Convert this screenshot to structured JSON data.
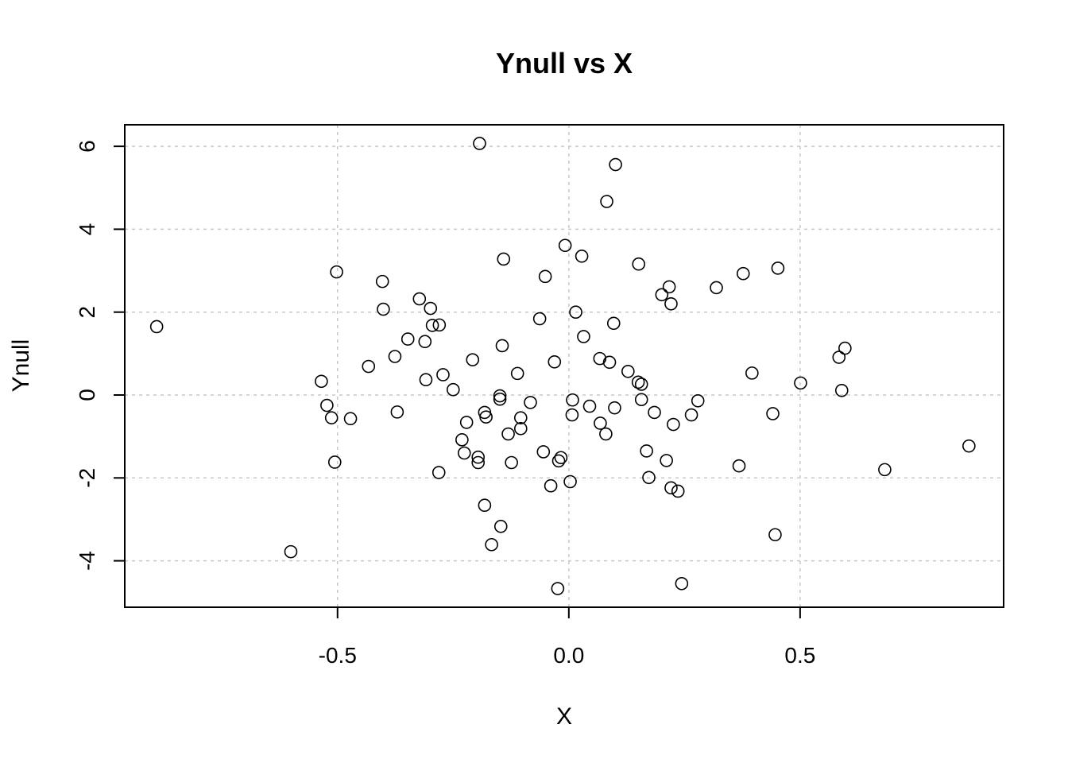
{
  "chart_data": {
    "type": "scatter",
    "title": "Ynull vs X",
    "xlabel": "X",
    "ylabel": "Ynull",
    "xlim": [
      -0.96,
      0.94
    ],
    "ylim": [
      -5.12,
      6.52
    ],
    "xticks": [
      -0.5,
      0.0,
      0.5
    ],
    "xtick_labels": [
      "-0.5",
      "0.0",
      "0.5"
    ],
    "yticks": [
      -4,
      -2,
      0,
      2,
      4,
      6
    ],
    "ytick_labels": [
      "-4",
      "-2",
      "0",
      "2",
      "4",
      "6"
    ],
    "grid": true,
    "legend": "none",
    "marker": "open-circle",
    "colors": {
      "points": "#000000",
      "grid": "#c8c8c8",
      "frame": "#000000"
    },
    "points": [
      {
        "x": -0.891,
        "y": 1.65
      },
      {
        "x": -0.601,
        "y": -3.78
      },
      {
        "x": -0.535,
        "y": 0.33
      },
      {
        "x": -0.523,
        "y": -0.25
      },
      {
        "x": -0.513,
        "y": -0.55
      },
      {
        "x": -0.506,
        "y": -1.62
      },
      {
        "x": -0.502,
        "y": 2.97
      },
      {
        "x": -0.472,
        "y": -0.57
      },
      {
        "x": -0.433,
        "y": 0.69
      },
      {
        "x": -0.403,
        "y": 2.74
      },
      {
        "x": -0.401,
        "y": 2.07
      },
      {
        "x": -0.376,
        "y": 0.93
      },
      {
        "x": -0.371,
        "y": -0.41
      },
      {
        "x": -0.348,
        "y": 1.35
      },
      {
        "x": -0.323,
        "y": 2.32
      },
      {
        "x": -0.311,
        "y": 1.29
      },
      {
        "x": -0.309,
        "y": 0.37
      },
      {
        "x": -0.299,
        "y": 2.09
      },
      {
        "x": -0.295,
        "y": 1.68
      },
      {
        "x": -0.28,
        "y": 1.69
      },
      {
        "x": -0.281,
        "y": -1.87
      },
      {
        "x": -0.272,
        "y": 0.49
      },
      {
        "x": -0.25,
        "y": 0.13
      },
      {
        "x": -0.231,
        "y": -1.08
      },
      {
        "x": -0.226,
        "y": -1.4
      },
      {
        "x": -0.221,
        "y": -0.66
      },
      {
        "x": -0.208,
        "y": 0.85
      },
      {
        "x": -0.196,
        "y": -1.5
      },
      {
        "x": -0.193,
        "y": 6.07
      },
      {
        "x": -0.196,
        "y": -1.63
      },
      {
        "x": -0.182,
        "y": -0.42
      },
      {
        "x": -0.182,
        "y": -2.66
      },
      {
        "x": -0.179,
        "y": -0.53
      },
      {
        "x": -0.167,
        "y": -3.61
      },
      {
        "x": -0.149,
        "y": -0.02
      },
      {
        "x": -0.149,
        "y": -0.1
      },
      {
        "x": -0.147,
        "y": -3.17
      },
      {
        "x": -0.144,
        "y": 1.19
      },
      {
        "x": -0.141,
        "y": 3.28
      },
      {
        "x": -0.131,
        "y": -0.94
      },
      {
        "x": -0.124,
        "y": -1.63
      },
      {
        "x": -0.111,
        "y": 0.52
      },
      {
        "x": -0.104,
        "y": -0.55
      },
      {
        "x": -0.104,
        "y": -0.81
      },
      {
        "x": -0.083,
        "y": -0.18
      },
      {
        "x": -0.063,
        "y": 1.84
      },
      {
        "x": -0.055,
        "y": -1.37
      },
      {
        "x": -0.051,
        "y": 2.86
      },
      {
        "x": -0.039,
        "y": -2.19
      },
      {
        "x": -0.031,
        "y": 0.8
      },
      {
        "x": -0.024,
        "y": -4.67
      },
      {
        "x": -0.022,
        "y": -1.59
      },
      {
        "x": -0.017,
        "y": -1.51
      },
      {
        "x": -0.008,
        "y": 3.61
      },
      {
        "x": 0.003,
        "y": -2.09
      },
      {
        "x": 0.007,
        "y": -0.48
      },
      {
        "x": 0.008,
        "y": -0.12
      },
      {
        "x": 0.015,
        "y": 2.0
      },
      {
        "x": 0.028,
        "y": 3.35
      },
      {
        "x": 0.032,
        "y": 1.41
      },
      {
        "x": 0.045,
        "y": -0.27
      },
      {
        "x": 0.067,
        "y": 0.88
      },
      {
        "x": 0.068,
        "y": -0.68
      },
      {
        "x": 0.08,
        "y": -0.94
      },
      {
        "x": 0.082,
        "y": 4.67
      },
      {
        "x": 0.088,
        "y": 0.79
      },
      {
        "x": 0.097,
        "y": 1.73
      },
      {
        "x": 0.099,
        "y": -0.31
      },
      {
        "x": 0.101,
        "y": 5.56
      },
      {
        "x": 0.128,
        "y": 0.57
      },
      {
        "x": 0.15,
        "y": 0.31
      },
      {
        "x": 0.151,
        "y": 3.16
      },
      {
        "x": 0.157,
        "y": 0.26
      },
      {
        "x": 0.157,
        "y": -0.11
      },
      {
        "x": 0.168,
        "y": -1.35
      },
      {
        "x": 0.173,
        "y": -1.99
      },
      {
        "x": 0.185,
        "y": -0.42
      },
      {
        "x": 0.201,
        "y": 2.42
      },
      {
        "x": 0.211,
        "y": -1.58
      },
      {
        "x": 0.217,
        "y": 2.61
      },
      {
        "x": 0.221,
        "y": -2.24
      },
      {
        "x": 0.221,
        "y": 2.2
      },
      {
        "x": 0.226,
        "y": -0.71
      },
      {
        "x": 0.236,
        "y": -2.32
      },
      {
        "x": 0.244,
        "y": -4.55
      },
      {
        "x": 0.265,
        "y": -0.48
      },
      {
        "x": 0.279,
        "y": -0.14
      },
      {
        "x": 0.319,
        "y": 2.59
      },
      {
        "x": 0.368,
        "y": -1.71
      },
      {
        "x": 0.377,
        "y": 2.93
      },
      {
        "x": 0.396,
        "y": 0.53
      },
      {
        "x": 0.441,
        "y": -0.45
      },
      {
        "x": 0.446,
        "y": -3.37
      },
      {
        "x": 0.452,
        "y": 3.06
      },
      {
        "x": 0.501,
        "y": 0.29
      },
      {
        "x": 0.584,
        "y": 0.91
      },
      {
        "x": 0.59,
        "y": 0.11
      },
      {
        "x": 0.597,
        "y": 1.13
      },
      {
        "x": 0.683,
        "y": -1.8
      },
      {
        "x": 0.865,
        "y": -1.23
      }
    ]
  }
}
